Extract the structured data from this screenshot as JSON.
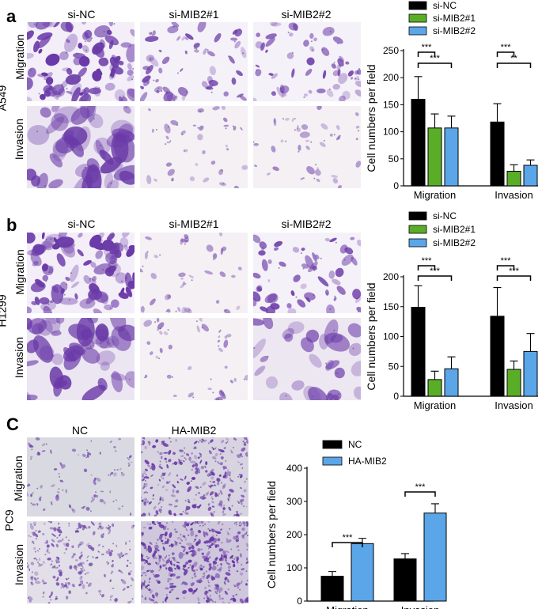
{
  "panels": [
    {
      "letter": "a",
      "cell_line": "A549",
      "columns": [
        "si-NC",
        "si-MIB2#1",
        "si-MIB2#2"
      ],
      "rows": [
        "Migration",
        "Invasion"
      ]
    },
    {
      "letter": "b",
      "cell_line": "H1299",
      "columns": [
        "si-NC",
        "si-MIB2#1",
        "si-MIB2#2"
      ],
      "rows": [
        "Migration",
        "Invasion"
      ]
    },
    {
      "letter": "C",
      "cell_line": "PC9",
      "columns": [
        "NC",
        "HA-MIB2"
      ],
      "rows": [
        "Migration",
        "Invasion"
      ]
    }
  ],
  "colors": {
    "si-NC": "#000000",
    "si-MIB2#1": "#5aae27",
    "si-MIB2#2": "#5aa6e8",
    "NC": "#000000",
    "HA-MIB2": "#5aa6e8",
    "stain_dark": "#6a3aa8",
    "stain_light": "#d9cfe6",
    "background": "#f2eff6"
  },
  "chart_data": [
    {
      "type": "bar",
      "panel": "a",
      "categories": [
        "Migration",
        "Invasion"
      ],
      "series": [
        {
          "name": "si-NC",
          "values": [
            160,
            118
          ],
          "errors": [
            42,
            34
          ]
        },
        {
          "name": "si-MIB2#1",
          "values": [
            107,
            27
          ],
          "errors": [
            26,
            12
          ]
        },
        {
          "name": "si-MIB2#2",
          "values": [
            107,
            38
          ],
          "errors": [
            22,
            10
          ]
        }
      ],
      "ylabel": "Cell numbers per field",
      "ylim": [
        0,
        250
      ],
      "yticks": [
        "0",
        "50",
        "100",
        "150",
        "200",
        "250"
      ],
      "significance": [
        {
          "group": "Migration",
          "from": 0,
          "to": 1,
          "label": "***"
        },
        {
          "group": "Migration",
          "from": 0,
          "to": 2,
          "label": "***"
        },
        {
          "group": "Invasion",
          "from": 0,
          "to": 1,
          "label": "***"
        },
        {
          "group": "Invasion",
          "from": 0,
          "to": 2,
          "label": "**"
        }
      ],
      "legend": "top"
    },
    {
      "type": "bar",
      "panel": "b",
      "categories": [
        "Migration",
        "Invasion"
      ],
      "series": [
        {
          "name": "si-NC",
          "values": [
            149,
            134
          ],
          "errors": [
            36,
            48
          ]
        },
        {
          "name": "si-MIB2#1",
          "values": [
            28,
            45
          ],
          "errors": [
            14,
            14
          ]
        },
        {
          "name": "si-MIB2#2",
          "values": [
            46,
            75
          ],
          "errors": [
            20,
            30
          ]
        }
      ],
      "ylabel": "Cell numbers per field",
      "ylim": [
        0,
        200
      ],
      "yticks": [
        "0",
        "50",
        "100",
        "150",
        "200"
      ],
      "significance": [
        {
          "group": "Migration",
          "from": 0,
          "to": 1,
          "label": "***"
        },
        {
          "group": "Migration",
          "from": 0,
          "to": 2,
          "label": "***"
        },
        {
          "group": "Invasion",
          "from": 0,
          "to": 1,
          "label": "***"
        },
        {
          "group": "Invasion",
          "from": 0,
          "to": 2,
          "label": "***"
        }
      ],
      "legend": "top"
    },
    {
      "type": "bar",
      "panel": "C",
      "categories": [
        "Migration",
        "Invasion"
      ],
      "series": [
        {
          "name": "NC",
          "values": [
            75,
            127
          ],
          "errors": [
            14,
            16
          ]
        },
        {
          "name": "HA-MIB2",
          "values": [
            173,
            265
          ],
          "errors": [
            16,
            28
          ]
        }
      ],
      "ylabel": "Cell numbers per field",
      "ylim": [
        0,
        400
      ],
      "yticks": [
        "0",
        "100",
        "200",
        "300",
        "400"
      ],
      "significance": [
        {
          "group": "Migration",
          "from": 0,
          "to": 1,
          "label": "***"
        },
        {
          "group": "Invasion",
          "from": 0,
          "to": 1,
          "label": "***"
        }
      ],
      "legend": "top"
    }
  ]
}
